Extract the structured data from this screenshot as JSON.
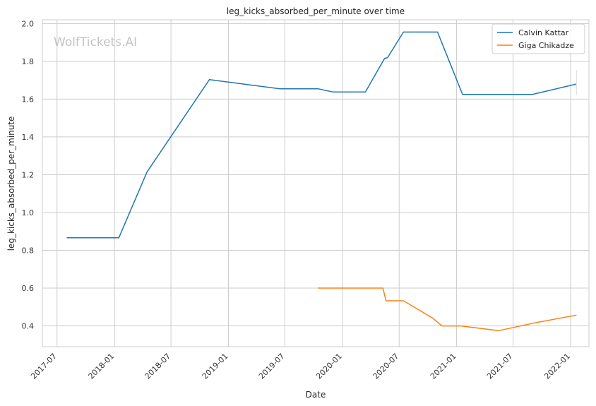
{
  "chart_data": {
    "type": "line",
    "title": "leg_kicks_absorbed_per_minute over time",
    "xlabel": "Date",
    "ylabel": "leg_kicks_absorbed_per_minute",
    "watermark": "WolfTickets.AI",
    "xlim": [
      "2017-05-15",
      "2022-03-01"
    ],
    "ylim": [
      0.29,
      2.02
    ],
    "x_ticks": [
      "2017-07-01",
      "2018-01-01",
      "2018-07-01",
      "2019-01-01",
      "2019-07-01",
      "2020-01-01",
      "2020-07-01",
      "2021-01-01",
      "2021-07-01",
      "2022-01-01"
    ],
    "x_tick_labels": [
      "2017-07",
      "2018-01",
      "2018-07",
      "2019-01",
      "2019-07",
      "2020-01",
      "2020-07",
      "2021-01",
      "2021-07",
      "2022-01"
    ],
    "y_ticks": [
      0.4,
      0.6,
      0.8,
      1.0,
      1.2,
      1.4,
      1.6,
      1.8,
      2.0
    ],
    "y_tick_labels": [
      "0.4",
      "0.6",
      "0.8",
      "1.0",
      "1.2",
      "1.4",
      "1.6",
      "1.8",
      "2.0"
    ],
    "grid": true,
    "legend_position": "top-right",
    "series": [
      {
        "name": "Calvin Kattar",
        "color": "#1f77b4",
        "points": [
          [
            "2017-08-01",
            0.866
          ],
          [
            "2018-01-15",
            0.866
          ],
          [
            "2018-04-15",
            1.214
          ],
          [
            "2018-11-01",
            1.703
          ],
          [
            "2019-06-15",
            1.655
          ],
          [
            "2019-10-15",
            1.655
          ],
          [
            "2019-12-01",
            1.638
          ],
          [
            "2020-03-15",
            1.638
          ],
          [
            "2020-05-15",
            1.815
          ],
          [
            "2020-05-25",
            1.82
          ],
          [
            "2020-07-15",
            1.955
          ],
          [
            "2020-11-01",
            1.955
          ],
          [
            "2021-01-20",
            1.625
          ],
          [
            "2021-09-01",
            1.625
          ],
          [
            "2022-01-20",
            1.68
          ]
        ]
      },
      {
        "name": "Giga Chikadze",
        "color": "#ff7f0e",
        "points": [
          [
            "2019-10-15",
            0.6
          ],
          [
            "2020-05-10",
            0.6
          ],
          [
            "2020-05-20",
            0.533
          ],
          [
            "2020-07-15",
            0.533
          ],
          [
            "2020-10-15",
            0.443
          ],
          [
            "2020-11-15",
            0.4
          ],
          [
            "2021-01-15",
            0.4
          ],
          [
            "2021-05-15",
            0.375
          ],
          [
            "2021-09-15",
            0.418
          ],
          [
            "2022-01-20",
            0.457
          ]
        ]
      }
    ]
  }
}
